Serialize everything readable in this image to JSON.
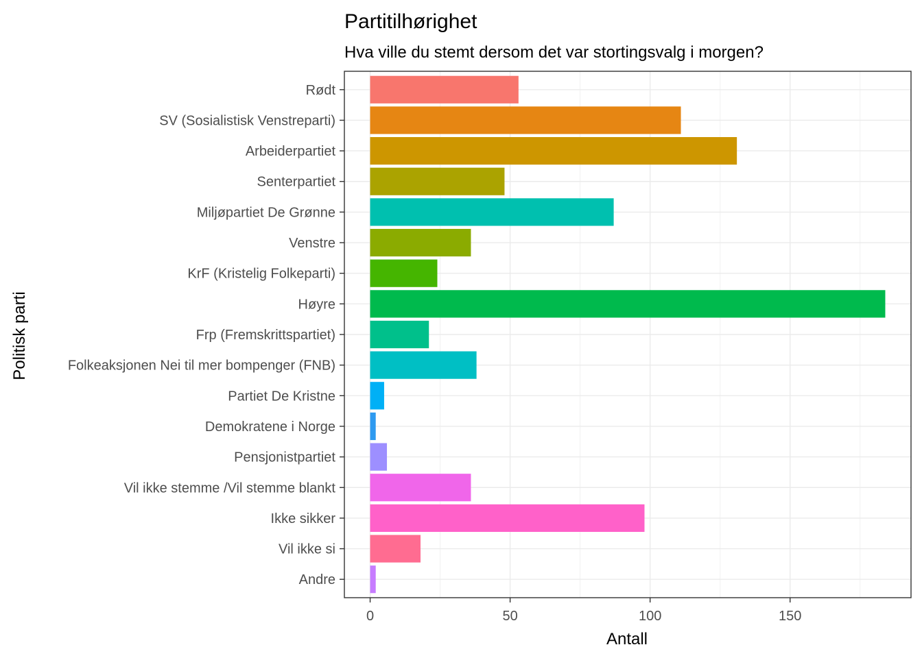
{
  "chart_data": {
    "type": "bar",
    "orientation": "horizontal",
    "title": "Partitilhørighet",
    "subtitle": "Hva ville du stemt dersom det var stortingsvalg i morgen?",
    "xlabel": "Antall",
    "ylabel": "Politisk parti",
    "xlim": [
      -9.2,
      193.2
    ],
    "xticks": [
      0,
      50,
      100,
      150
    ],
    "grid": true,
    "legend": "none",
    "categories": [
      "Rødt",
      "SV (Sosialistisk Venstreparti)",
      "Arbeiderpartiet",
      "Senterpartiet",
      "Miljøpartiet De Grønne",
      "Venstre",
      "KrF (Kristelig Folkeparti)",
      "Høyre",
      "Frp (Fremskrittspartiet)",
      "Folkeaksjonen Nei til mer bompenger (FNB)",
      "Partiet De Kristne",
      "Demokratene i Norge",
      "Pensjonistpartiet",
      "Vil ikke stemme /Vil stemme blankt",
      "Ikke sikker",
      "Vil ikke si",
      "Andre"
    ],
    "values": [
      53,
      111,
      131,
      48,
      87,
      36,
      24,
      184,
      21,
      38,
      5,
      2,
      6,
      36,
      98,
      18,
      2
    ],
    "colors": [
      "#F8766D",
      "#E68613",
      "#CD9600",
      "#ABA300",
      "#00C0AF",
      "#8BAB00",
      "#45B500",
      "#00BA4D",
      "#00C08B",
      "#00BFC4",
      "#00B0F6",
      "#2E9AF0",
      "#9D8FFF",
      "#F066EA",
      "#FF61C9",
      "#FF6C91",
      "#C77CFF"
    ]
  }
}
